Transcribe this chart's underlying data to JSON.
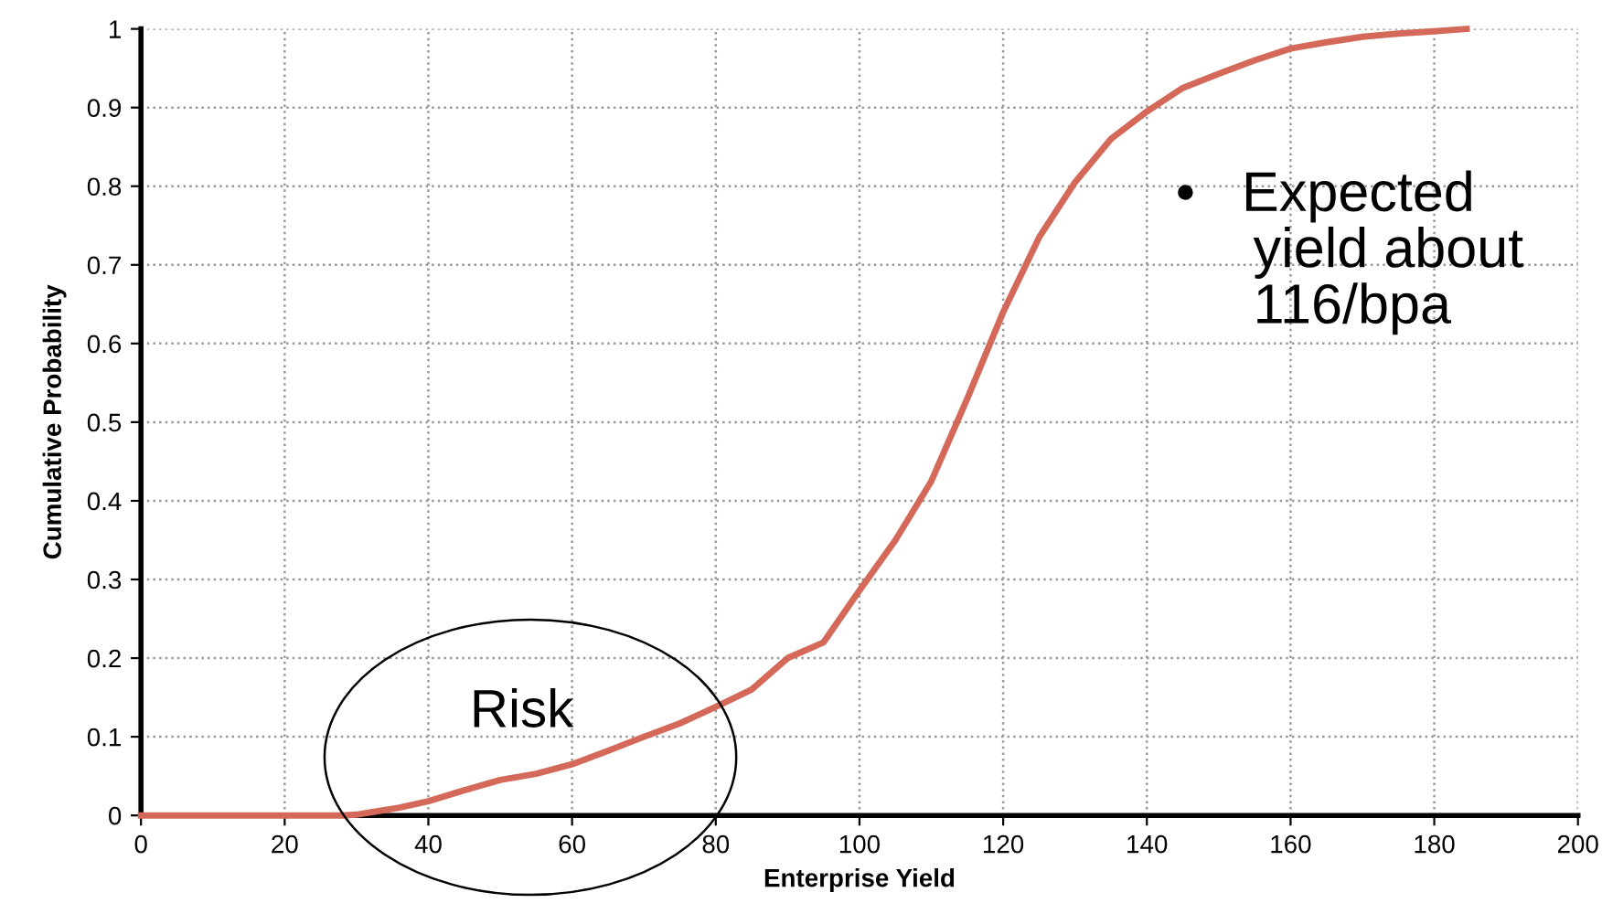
{
  "chart_data": {
    "type": "line",
    "xlabel": "Enterprise Yield",
    "ylabel": "Cumulative Probability",
    "x": [
      0,
      10,
      20,
      28,
      30,
      32,
      36,
      40,
      45,
      50,
      55,
      60,
      65,
      70,
      75,
      80,
      85,
      90,
      95,
      100,
      105,
      110,
      115,
      120,
      125,
      130,
      135,
      140,
      145,
      150,
      155,
      160,
      165,
      170,
      175,
      180,
      184.5
    ],
    "series": [
      {
        "color": "#d4695a",
        "values": [
          0,
          0,
          0,
          0,
          0.001,
          0.004,
          0.01,
          0.018,
          0.032,
          0.045,
          0.053,
          0.065,
          0.082,
          0.1,
          0.117,
          0.138,
          0.16,
          0.2,
          0.22,
          0.286,
          0.35,
          0.425,
          0.53,
          0.64,
          0.735,
          0.805,
          0.86,
          0.895,
          0.925,
          0.943,
          0.96,
          0.975,
          0.983,
          0.99,
          0.994,
          0.997,
          1
        ]
      }
    ],
    "xlim": [
      0,
      200
    ],
    "ylim": [
      0,
      1
    ],
    "xticks": [
      0,
      20,
      40,
      60,
      80,
      100,
      120,
      140,
      160,
      180,
      200
    ],
    "yticks": [
      0,
      0.1,
      0.2,
      0.3,
      0.4,
      0.5,
      0.6,
      0.7,
      0.8,
      0.9,
      1
    ],
    "grid": true,
    "legend": false,
    "marker": "none",
    "line_style": "solid",
    "annotations": [
      "Risk",
      "•   Expected\n     yield about\n     116/bpa"
    ]
  }
}
